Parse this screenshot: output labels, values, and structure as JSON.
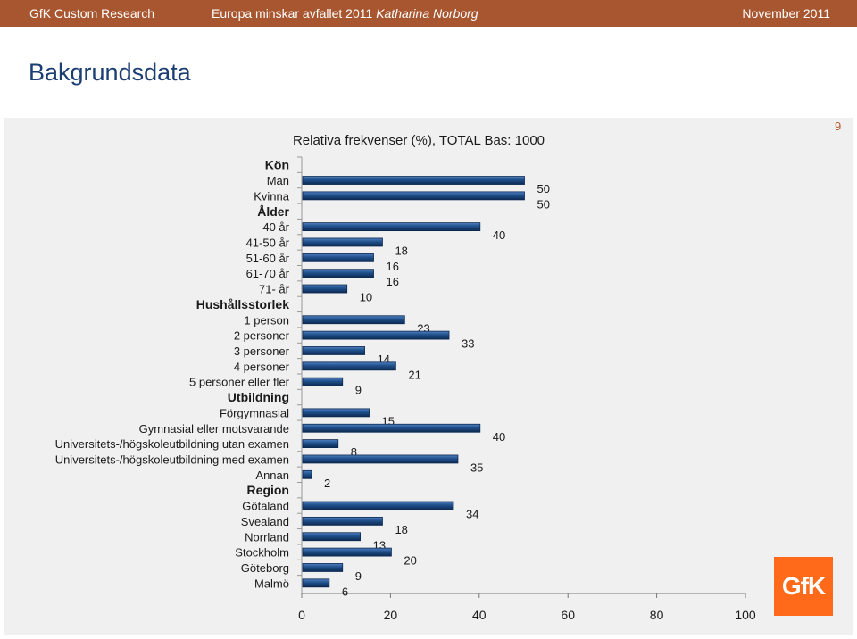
{
  "header": {
    "left": "GfK Custom Research",
    "center": "Europa minskar avfallet 2011",
    "author": "Katharina Norborg",
    "right": "November 2011"
  },
  "page_title": "Bakgrundsdata",
  "page_number": "9",
  "logo_text": "GfK",
  "colors": {
    "header_bg": "#a8562f",
    "bar": "#1f4f8a",
    "bar_edge": "#0d2a52",
    "title": "#1b3e73",
    "logo": "#ff6a1a"
  },
  "chart_data": {
    "type": "bar",
    "orientation": "horizontal",
    "title": "Relativa frekvenser (%), TOTAL Bas: 1000",
    "xlim": [
      0,
      100
    ],
    "x_ticks": [
      0,
      20,
      40,
      60,
      80,
      100
    ],
    "rows": [
      {
        "label": "Kön",
        "header": true
      },
      {
        "label": "Man",
        "value": 50
      },
      {
        "label": "Kvinna",
        "value": 50
      },
      {
        "label": "Ålder",
        "header": true
      },
      {
        "label": "-40 år",
        "value": 40
      },
      {
        "label": "41-50 år",
        "value": 18
      },
      {
        "label": "51-60 år",
        "value": 16
      },
      {
        "label": "61-70 år",
        "value": 16
      },
      {
        "label": "71- år",
        "value": 10
      },
      {
        "label": "Hushållsstorlek",
        "header": true
      },
      {
        "label": "1 person",
        "value": 23
      },
      {
        "label": "2 personer",
        "value": 33
      },
      {
        "label": "3 personer",
        "value": 14
      },
      {
        "label": "4 personer",
        "value": 21
      },
      {
        "label": "5 personer eller fler",
        "value": 9
      },
      {
        "label": "Utbildning",
        "header": true
      },
      {
        "label": "Förgymnasial",
        "value": 15
      },
      {
        "label": "Gymnasial eller motsvarande",
        "value": 40
      },
      {
        "label": "Universitets-/högskoleutbildning utan examen",
        "value": 8
      },
      {
        "label": "Universitets-/högskoleutbildning med examen",
        "value": 35
      },
      {
        "label": "Annan",
        "value": 2
      },
      {
        "label": "Region",
        "header": true
      },
      {
        "label": "Götaland",
        "value": 34
      },
      {
        "label": "Svealand",
        "value": 18
      },
      {
        "label": "Norrland",
        "value": 13
      },
      {
        "label": "Stockholm",
        "value": 20
      },
      {
        "label": "Göteborg",
        "value": 9
      },
      {
        "label": "Malmö",
        "value": 6
      }
    ]
  }
}
